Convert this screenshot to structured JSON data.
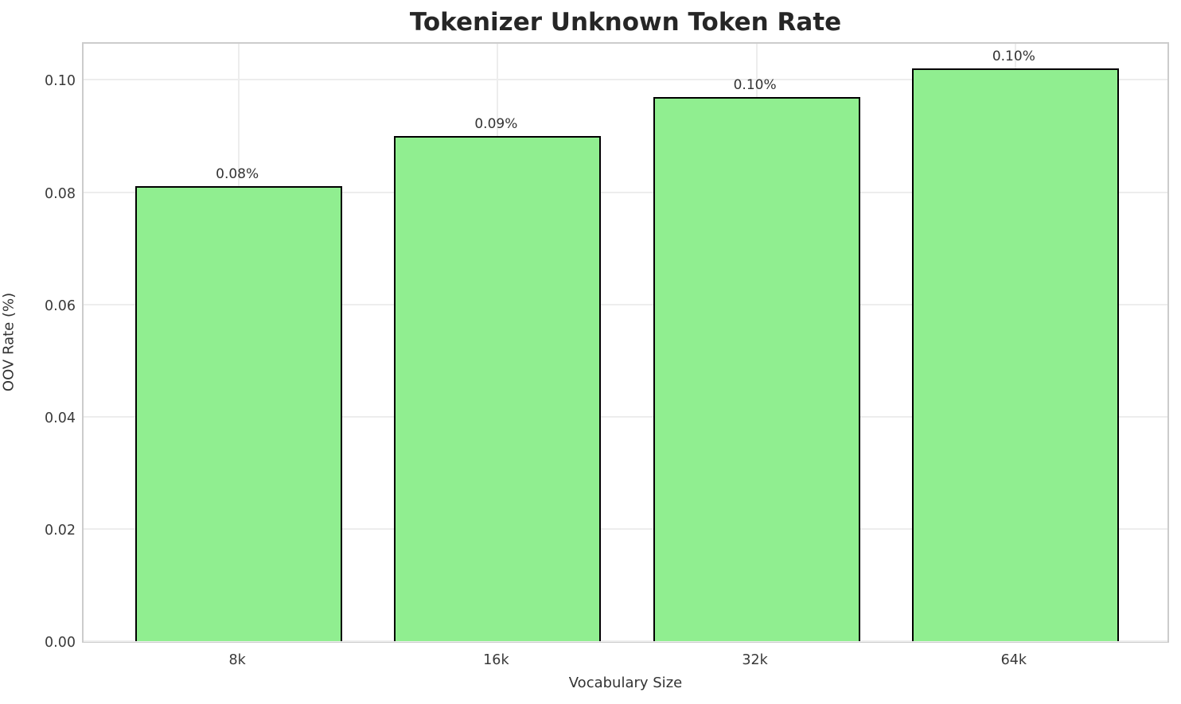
{
  "chart_data": {
    "type": "bar",
    "title": "Tokenizer Unknown Token Rate",
    "xlabel": "Vocabulary Size",
    "ylabel": "OOV Rate (%)",
    "categories": [
      "8k",
      "16k",
      "32k",
      "64k"
    ],
    "values": [
      0.081,
      0.09,
      0.097,
      0.102
    ],
    "bar_labels": [
      "0.08%",
      "0.09%",
      "0.10%",
      "0.10%"
    ],
    "yticks": [
      0.0,
      0.02,
      0.04,
      0.06,
      0.08,
      0.1
    ],
    "ytick_labels": [
      "0.00",
      "0.02",
      "0.04",
      "0.06",
      "0.08",
      "0.10"
    ],
    "ylim": [
      0,
      0.107
    ],
    "grid": true,
    "legend": "none",
    "bar_color": "#90ee90",
    "bar_edge_color": "#000000",
    "grid_color": "#ededed",
    "spine_color": "#cccccc"
  }
}
